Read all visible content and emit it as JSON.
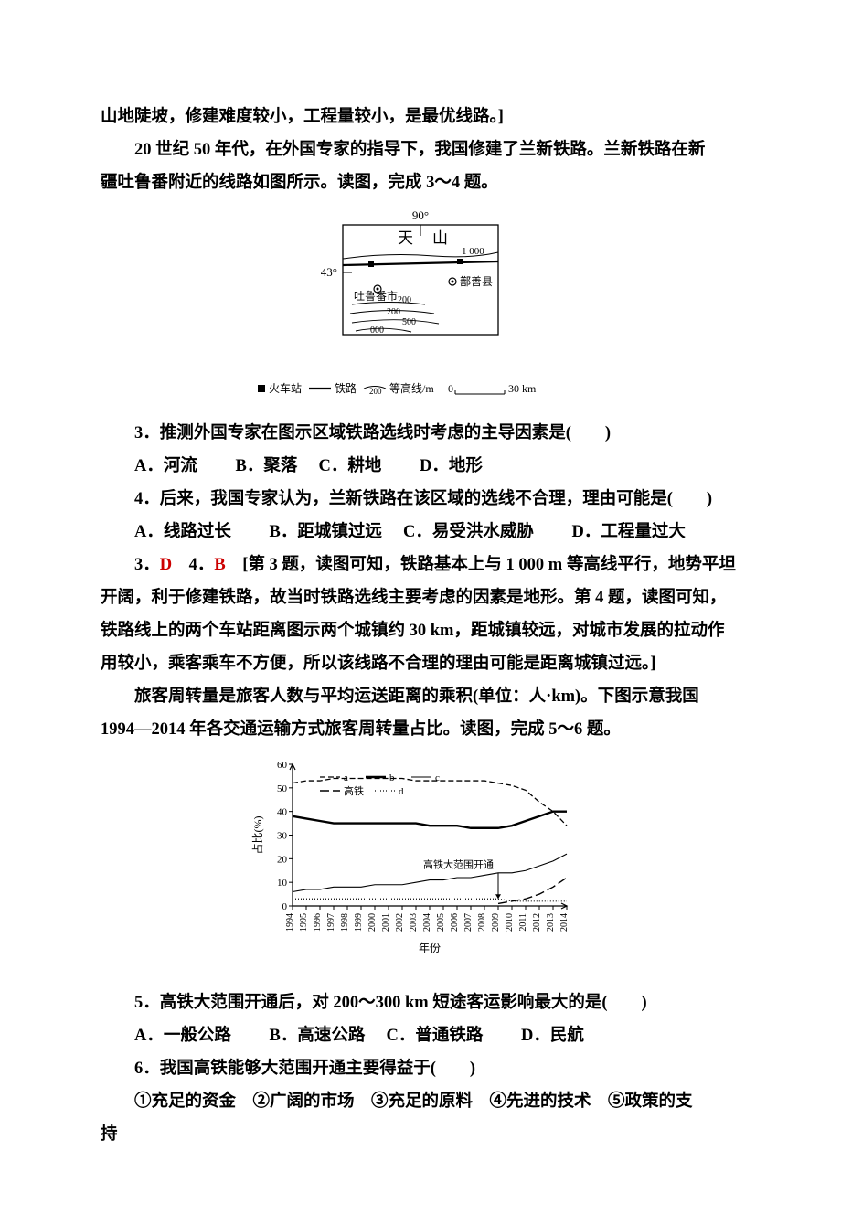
{
  "intro_line": "山地陡坡，修建难度较小，工程量较小，是最优线路。]",
  "context_q34_a": "20 世纪 50 年代，在外国专家的指导下，我国修建了兰新铁路。兰新铁路在新",
  "context_q34_b": "疆吐鲁番附近的线路如图所示。读图，完成 3～4 题。",
  "map": {
    "top_label": "90°",
    "left_label": "43°",
    "tian": "天",
    "shan": "山",
    "contour1": "1 000",
    "city_tulufan": "吐鲁番市",
    "city_shanshan": "鄯善县",
    "contour200a": "200",
    "contour200b": "200",
    "contour500": "500",
    "contour000": "000",
    "legend_station": "火车站",
    "legend_rail": "铁路",
    "legend_contour": "200",
    "legend_contour_label": "等高线/m",
    "scale_0": "0",
    "scale_30": "30 km"
  },
  "q3": {
    "stem": "3．推测外国专家在图示区域铁路选线时考虑的主导因素是(　　)",
    "optA": "A．河流",
    "optB": "B．聚落",
    "optC": "C．耕地",
    "optD": "D．地形"
  },
  "q4": {
    "stem": "4．后来，我国专家认为，兰新铁路在该区域的选线不合理，理由可能是(　　)",
    "optA": "A．线路过长",
    "optB": "B．距城镇过远",
    "optC": "C．易受洪水威胁",
    "optD": "D．工程量过大"
  },
  "answers34": {
    "a3label": "3．",
    "a3": "D",
    "a4label": "　4．",
    "a4": "B",
    "explain": "　[第 3 题，读图可知，铁路基本上与 1 000 m 等高线平行，地势平坦开阔，利于修建铁路，故当时铁路选线主要考虑的因素是地形。第 4 题，读图可知，铁路线上的两个车站距离图示两个城镇约 30 km，距城镇较远，对城市发展的拉动作用较小，乘客乘车不方便，所以该线路不合理的理由可能是距离城镇过远。]"
  },
  "context_q56_a": "旅客周转量是旅客人数与平均运送距离的乘积(单位：人·km)。下图示意我国",
  "context_q56_b": "1994—2014 年各交通运输方式旅客周转量占比。读图，完成 5～6 题。",
  "chart": {
    "y_label": "占比(%)",
    "x_label": "年份",
    "y_ticks": [
      "0",
      "10",
      "20",
      "30",
      "40",
      "50",
      "60"
    ],
    "x_ticks": [
      "1994",
      "1995",
      "1996",
      "1997",
      "1998",
      "1999",
      "2000",
      "2001",
      "2002",
      "2003",
      "2004",
      "2005",
      "2006",
      "2007",
      "2008",
      "2009",
      "2010",
      "2011",
      "2012",
      "2013",
      "2014"
    ],
    "legend_items": [
      "a",
      "b",
      "c",
      "高铁",
      "d"
    ],
    "annotation": "高铁大范围开通",
    "series": {
      "a": {
        "color": "#000000",
        "dash": "6,3",
        "type": "line",
        "values": [
          52,
          53,
          53,
          54,
          54,
          54,
          54,
          54,
          54,
          53,
          53,
          53,
          53,
          53,
          53,
          52,
          51,
          49,
          44,
          40,
          34
        ]
      },
      "b": {
        "color": "#000000",
        "dash": "none",
        "type": "line-thick",
        "values": [
          38,
          37,
          36,
          35,
          35,
          35,
          35,
          35,
          35,
          35,
          34,
          34,
          34,
          33,
          33,
          33,
          34,
          36,
          38,
          40,
          40
        ]
      },
      "c": {
        "color": "#000000",
        "dash": "none",
        "type": "line-thin",
        "values": [
          6,
          7,
          7,
          8,
          8,
          8,
          9,
          9,
          9,
          10,
          11,
          11,
          12,
          12,
          13,
          14,
          14,
          15,
          17,
          19,
          22
        ]
      },
      "gaotie": {
        "color": "#000000",
        "dash": "10,4",
        "type": "line",
        "values": [
          null,
          null,
          null,
          null,
          null,
          null,
          null,
          null,
          null,
          null,
          null,
          null,
          null,
          null,
          null,
          1,
          2,
          3,
          5,
          8,
          12
        ]
      },
      "d": {
        "color": "#000000",
        "dash": "1,2",
        "type": "dotted",
        "values": [
          3,
          3,
          3,
          3,
          3,
          3,
          3,
          3,
          3,
          3,
          3,
          3,
          3,
          3,
          3,
          3,
          2,
          2,
          2,
          2,
          2
        ]
      }
    },
    "ylim": [
      0,
      60
    ],
    "plot_bg": "#ffffff",
    "axis_color": "#000000",
    "font_size_axis": 11,
    "arrow_year_index": 15
  },
  "q5": {
    "stem": "5．高铁大范围开通后，对 200～300 km 短途客运影响最大的是(　　)",
    "optA": "A．一般公路",
    "optB": "B．高速公路",
    "optC": "C．普通铁路",
    "optD": "D．民航"
  },
  "q6": {
    "stem": "6．我国高铁能够大范围开通主要得益于(　　)",
    "factors": "①充足的资金　②广阔的市场　③充足的原料　④先进的技术　⑤政策的支",
    "factors_cont": "持"
  }
}
